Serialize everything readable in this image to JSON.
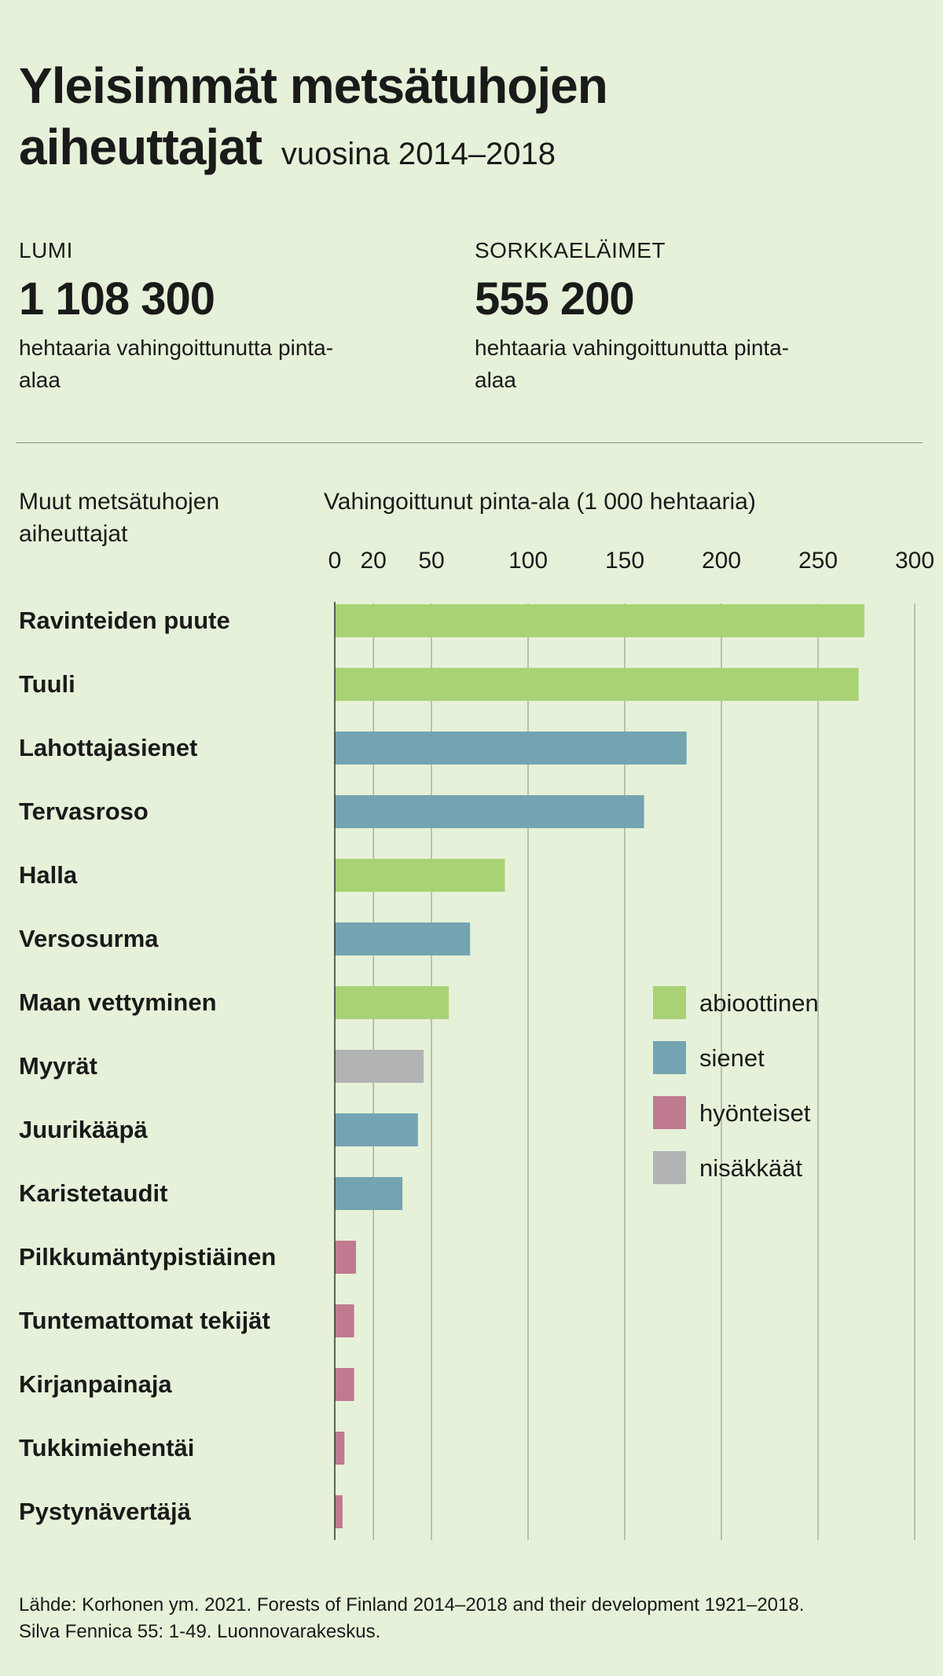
{
  "header": {
    "title_line1": "Yleisimmät metsätuhojen",
    "title_line2": "aiheuttajat",
    "subtitle": "vuosina 2014–2018"
  },
  "stats": [
    {
      "label": "LUMI",
      "value": "1 108 300",
      "description": "hehtaaria vahingoittunutta pinta-alaa"
    },
    {
      "label": "SORKKAELÄIMET",
      "value": "555 200",
      "description": "hehtaaria vahingoittunutta pinta-alaa"
    }
  ],
  "section_label": "Muut metsätuhojen aiheuttajat",
  "colors": {
    "abioottinen": "#a9d275",
    "sienet": "#74a4b1",
    "hyonteiset": "#c07a90",
    "nisakkaat": "#b1b3b5",
    "gridline": "#9aa093",
    "background": "#e6f1d9"
  },
  "chart_data": {
    "type": "bar",
    "orientation": "horizontal",
    "xlabel": "Vahingoittunut pinta-ala (1 000 hehtaaria)",
    "xlim": [
      0,
      300
    ],
    "xticks": [
      0,
      20,
      50,
      100,
      150,
      200,
      250,
      300
    ],
    "grid": true,
    "legend_position": "right",
    "legend": [
      {
        "key": "abioottinen",
        "label": "abioottinen"
      },
      {
        "key": "sienet",
        "label": "sienet"
      },
      {
        "key": "hyonteiset",
        "label": "hyönteiset"
      },
      {
        "key": "nisakkaat",
        "label": "nisäkkäät"
      }
    ],
    "categories": [
      "Ravinteiden puute",
      "Tuuli",
      "Lahottajasienet",
      "Tervasroso",
      "Halla",
      "Versosurma",
      "Maan vettyminen",
      "Myyrät",
      "Juurikääpä",
      "Karistetaudit",
      "Pilkkumäntypistiäinen",
      "Tuntemattomat tekijät",
      "Kirjanpainaja",
      "Tukkimiehentäi",
      "Pystynävertäjä"
    ],
    "values": [
      274,
      271,
      182,
      160,
      88,
      70,
      59,
      46,
      43,
      35,
      11,
      10,
      10,
      5,
      4
    ],
    "groups": [
      "abioottinen",
      "abioottinen",
      "sienet",
      "sienet",
      "abioottinen",
      "sienet",
      "abioottinen",
      "nisakkaat",
      "sienet",
      "sienet",
      "hyonteiset",
      "hyonteiset",
      "hyonteiset",
      "hyonteiset",
      "hyonteiset"
    ]
  },
  "source": {
    "line1": "Lähde: Korhonen ym. 2021. Forests of Finland 2014–2018 and their development 1921–2018.",
    "line2": "Silva Fennica 55: 1-49. Luonnovarakeskus."
  }
}
